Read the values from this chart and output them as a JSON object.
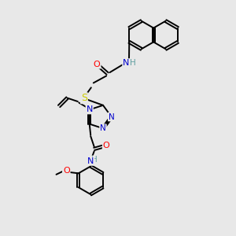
{
  "background_color": "#e8e8e8",
  "bond_color": "#000000",
  "atom_colors": {
    "N": "#0000cc",
    "O": "#ff0000",
    "S": "#cccc00",
    "H": "#5f9ea0",
    "C": "#000000"
  },
  "figsize": [
    3.0,
    3.0
  ],
  "dpi": 100
}
